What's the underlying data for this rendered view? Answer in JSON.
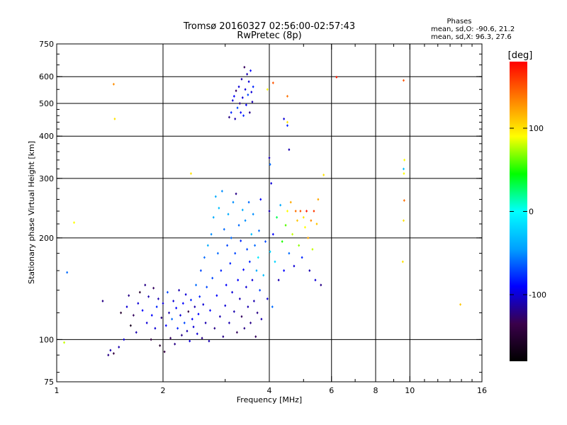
{
  "chart_data": {
    "type": "scatter",
    "title": "Tromsø 20160327 02:56:00-02:57:43",
    "subtitle": "RwPretec (8p)",
    "xlabel": "Frequency [MHz]",
    "ylabel": "Stationary phase Virtual Height [km]",
    "x_scale": "log",
    "y_scale": "log",
    "xlim": [
      1,
      16
    ],
    "ylim": [
      75,
      750
    ],
    "x_ticks": [
      1,
      2,
      4,
      6,
      8,
      10,
      16
    ],
    "x_tick_labels": [
      "1",
      "2",
      "4",
      "6",
      "8",
      "10",
      "16"
    ],
    "y_ticks": [
      75,
      100,
      200,
      300,
      400,
      500,
      600,
      750
    ],
    "y_tick_labels": [
      "75",
      "100",
      "200",
      "300",
      "400",
      "500",
      "600",
      "750"
    ],
    "grid_x": [
      2,
      4,
      6,
      8,
      10
    ],
    "grid_y": [
      100,
      200,
      300,
      400,
      500,
      600
    ],
    "grid": true,
    "stats": {
      "heading": "Phases",
      "line_o": "mean, sd,O: -90.6, 21.2",
      "line_x": "mean, sd,X:  96.3, 27.6"
    },
    "colorbar": {
      "label": "[deg]",
      "range": [
        -180,
        180
      ],
      "ticks": [
        -100,
        0,
        100
      ],
      "tick_labels": [
        "-100",
        "0",
        "100"
      ],
      "colors": [
        "#000000",
        "#3a004a",
        "#0000ff",
        "#00a0ff",
        "#00ffff",
        "#00ff00",
        "#ffff00",
        "#ff8000",
        "#ff0000"
      ]
    },
    "point_fields": [
      "frequency_mhz",
      "height_km",
      "phase_deg"
    ],
    "points": [
      [
        1.05,
        98,
        80
      ],
      [
        1.07,
        158,
        -60
      ],
      [
        1.12,
        222,
        90
      ],
      [
        1.4,
        90,
        -120
      ],
      [
        1.42,
        93,
        -110
      ],
      [
        1.45,
        91,
        -140
      ],
      [
        1.35,
        130,
        -120
      ],
      [
        1.5,
        95,
        -110
      ],
      [
        1.55,
        100,
        -100
      ],
      [
        1.52,
        120,
        -150
      ],
      [
        1.58,
        125,
        -100
      ],
      [
        1.62,
        110,
        -160
      ],
      [
        1.6,
        135,
        -120
      ],
      [
        1.65,
        118,
        -130
      ],
      [
        1.68,
        105,
        -110
      ],
      [
        1.7,
        128,
        -100
      ],
      [
        1.72,
        138,
        -150
      ],
      [
        1.75,
        122,
        -90
      ],
      [
        1.78,
        145,
        -120
      ],
      [
        1.8,
        112,
        -100
      ],
      [
        1.82,
        134,
        -110
      ],
      [
        1.85,
        100,
        -140
      ],
      [
        1.86,
        118,
        -90
      ],
      [
        1.88,
        142,
        -130
      ],
      [
        1.9,
        108,
        -100
      ],
      [
        1.92,
        125,
        -80
      ],
      [
        1.94,
        132,
        -110
      ],
      [
        1.96,
        96,
        -150
      ],
      [
        1.98,
        116,
        -120
      ],
      [
        2.0,
        128,
        -100
      ],
      [
        2.02,
        92,
        -140
      ],
      [
        2.04,
        110,
        -90
      ],
      [
        2.06,
        138,
        -70
      ],
      [
        2.08,
        120,
        -110
      ],
      [
        2.1,
        101,
        -130
      ],
      [
        2.12,
        115,
        -60
      ],
      [
        2.14,
        130,
        -100
      ],
      [
        2.16,
        97,
        -120
      ],
      [
        2.18,
        124,
        -90
      ],
      [
        2.2,
        108,
        -80
      ],
      [
        2.22,
        140,
        -110
      ],
      [
        2.24,
        118,
        -100
      ],
      [
        2.26,
        103,
        -120
      ],
      [
        2.28,
        128,
        -90
      ],
      [
        2.3,
        112,
        -70
      ],
      [
        2.32,
        136,
        -100
      ],
      [
        2.34,
        106,
        -110
      ],
      [
        2.36,
        121,
        -140
      ],
      [
        2.38,
        99,
        -100
      ],
      [
        2.4,
        131,
        -80
      ],
      [
        2.42,
        115,
        -90
      ],
      [
        2.44,
        109,
        -100
      ],
      [
        2.46,
        125,
        -110
      ],
      [
        2.48,
        145,
        -60
      ],
      [
        2.5,
        104,
        -100
      ],
      [
        2.52,
        119,
        -90
      ],
      [
        2.54,
        134,
        -80
      ],
      [
        2.56,
        160,
        -70
      ],
      [
        2.58,
        101,
        -120
      ],
      [
        2.6,
        127,
        -100
      ],
      [
        2.62,
        175,
        -60
      ],
      [
        2.64,
        112,
        -110
      ],
      [
        2.66,
        143,
        -70
      ],
      [
        2.68,
        190,
        -40
      ],
      [
        2.7,
        99,
        -110
      ],
      [
        2.72,
        122,
        -90
      ],
      [
        2.74,
        205,
        -50
      ],
      [
        2.76,
        152,
        -70
      ],
      [
        2.78,
        230,
        -40
      ],
      [
        2.8,
        108,
        -120
      ],
      [
        2.82,
        265,
        -40
      ],
      [
        2.84,
        135,
        -90
      ],
      [
        2.86,
        180,
        -60
      ],
      [
        2.88,
        245,
        -30
      ],
      [
        2.9,
        117,
        -110
      ],
      [
        2.92,
        160,
        -80
      ],
      [
        2.94,
        275,
        -50
      ],
      [
        2.96,
        102,
        -120
      ],
      [
        2.98,
        212,
        -60
      ],
      [
        3.0,
        126,
        -100
      ],
      [
        3.02,
        145,
        -90
      ],
      [
        3.04,
        190,
        -70
      ],
      [
        3.06,
        235,
        -40
      ],
      [
        3.08,
        112,
        -110
      ],
      [
        3.1,
        168,
        -80
      ],
      [
        3.12,
        200,
        -60
      ],
      [
        3.14,
        138,
        -100
      ],
      [
        3.16,
        255,
        -50
      ],
      [
        3.18,
        121,
        -110
      ],
      [
        3.2,
        180,
        -70
      ],
      [
        3.22,
        270,
        -120
      ],
      [
        3.24,
        105,
        -130
      ],
      [
        3.26,
        150,
        -90
      ],
      [
        3.28,
        218,
        -60
      ],
      [
        3.3,
        132,
        -110
      ],
      [
        3.32,
        196,
        -80
      ],
      [
        3.34,
        117,
        -130
      ],
      [
        3.36,
        242,
        -40
      ],
      [
        3.38,
        161,
        -90
      ],
      [
        3.4,
        108,
        -120
      ],
      [
        3.42,
        225,
        -50
      ],
      [
        3.44,
        143,
        -100
      ],
      [
        3.46,
        185,
        -70
      ],
      [
        3.48,
        125,
        -110
      ],
      [
        3.5,
        255,
        -60
      ],
      [
        3.52,
        170,
        -80
      ],
      [
        3.54,
        112,
        -120
      ],
      [
        3.56,
        205,
        -30
      ],
      [
        3.58,
        150,
        -100
      ],
      [
        3.6,
        235,
        -50
      ],
      [
        3.62,
        130,
        -110
      ],
      [
        3.64,
        190,
        -60
      ],
      [
        3.66,
        102,
        -130
      ],
      [
        3.68,
        160,
        -40
      ],
      [
        3.7,
        120,
        -120
      ],
      [
        3.72,
        175,
        -10
      ],
      [
        3.74,
        210,
        -60
      ],
      [
        3.76,
        140,
        -70
      ],
      [
        3.78,
        260,
        -90
      ],
      [
        3.8,
        115,
        -110
      ],
      [
        3.85,
        155,
        -30
      ],
      [
        3.9,
        195,
        -70
      ],
      [
        3.95,
        132,
        -100
      ],
      [
        4.0,
        240,
        -110
      ],
      [
        4.02,
        182,
        -20
      ],
      [
        4.05,
        290,
        -100
      ],
      [
        4.08,
        125,
        -60
      ],
      [
        4.1,
        205,
        -90
      ],
      [
        4.15,
        170,
        -20
      ],
      [
        4.2,
        230,
        30
      ],
      [
        4.25,
        150,
        -110
      ],
      [
        4.3,
        250,
        -40
      ],
      [
        4.35,
        195,
        50
      ],
      [
        4.4,
        160,
        -90
      ],
      [
        4.45,
        218,
        60
      ],
      [
        4.5,
        240,
        90
      ],
      [
        4.55,
        180,
        -60
      ],
      [
        4.6,
        255,
        120
      ],
      [
        4.65,
        205,
        80
      ],
      [
        4.7,
        165,
        -100
      ],
      [
        4.75,
        240,
        140
      ],
      [
        4.8,
        225,
        110
      ],
      [
        4.85,
        190,
        70
      ],
      [
        4.9,
        240,
        150
      ],
      [
        4.95,
        175,
        -80
      ],
      [
        5.0,
        230,
        100
      ],
      [
        5.05,
        215,
        90
      ],
      [
        5.1,
        240,
        170
      ],
      [
        5.15,
        200,
        120
      ],
      [
        5.2,
        160,
        -110
      ],
      [
        5.25,
        225,
        130
      ],
      [
        5.3,
        185,
        80
      ],
      [
        5.35,
        240,
        160
      ],
      [
        5.4,
        150,
        -100
      ],
      [
        5.45,
        220,
        110
      ],
      [
        5.5,
        260,
        120
      ],
      [
        5.6,
        145,
        -120
      ],
      [
        5.7,
        307,
        100
      ],
      [
        3.08,
        455,
        -120
      ],
      [
        3.12,
        470,
        -80
      ],
      [
        3.15,
        510,
        -100
      ],
      [
        3.18,
        525,
        -90
      ],
      [
        3.2,
        450,
        -110
      ],
      [
        3.22,
        545,
        -130
      ],
      [
        3.25,
        485,
        -70
      ],
      [
        3.28,
        560,
        -100
      ],
      [
        3.3,
        500,
        -120
      ],
      [
        3.32,
        470,
        -90
      ],
      [
        3.34,
        590,
        -110
      ],
      [
        3.36,
        520,
        -100
      ],
      [
        3.38,
        460,
        -80
      ],
      [
        3.4,
        640,
        -130
      ],
      [
        3.42,
        550,
        -100
      ],
      [
        3.44,
        495,
        -90
      ],
      [
        3.46,
        610,
        -110
      ],
      [
        3.48,
        530,
        -70
      ],
      [
        3.5,
        580,
        -100
      ],
      [
        3.52,
        470,
        -120
      ],
      [
        3.54,
        625,
        -90
      ],
      [
        3.56,
        540,
        -100
      ],
      [
        3.58,
        505,
        -110
      ],
      [
        3.6,
        560,
        -80
      ],
      [
        4.0,
        345,
        -110
      ],
      [
        4.02,
        330,
        -60
      ],
      [
        3.95,
        550,
        90
      ],
      [
        4.1,
        575,
        150
      ],
      [
        4.4,
        450,
        -100
      ],
      [
        4.5,
        525,
        140
      ],
      [
        4.55,
        365,
        -110
      ],
      [
        4.5,
        430,
        -80
      ],
      [
        4.5,
        440,
        100
      ],
      [
        1.45,
        570,
        130
      ],
      [
        1.46,
        450,
        100
      ],
      [
        2.4,
        310,
        100
      ],
      [
        6.2,
        598,
        170
      ],
      [
        9.6,
        585,
        150
      ],
      [
        9.65,
        340,
        90
      ],
      [
        9.6,
        320,
        -30
      ],
      [
        9.62,
        310,
        90
      ],
      [
        9.64,
        258,
        140
      ],
      [
        9.6,
        225,
        100
      ],
      [
        9.55,
        170,
        100
      ],
      [
        13.9,
        127,
        110
      ]
    ]
  }
}
